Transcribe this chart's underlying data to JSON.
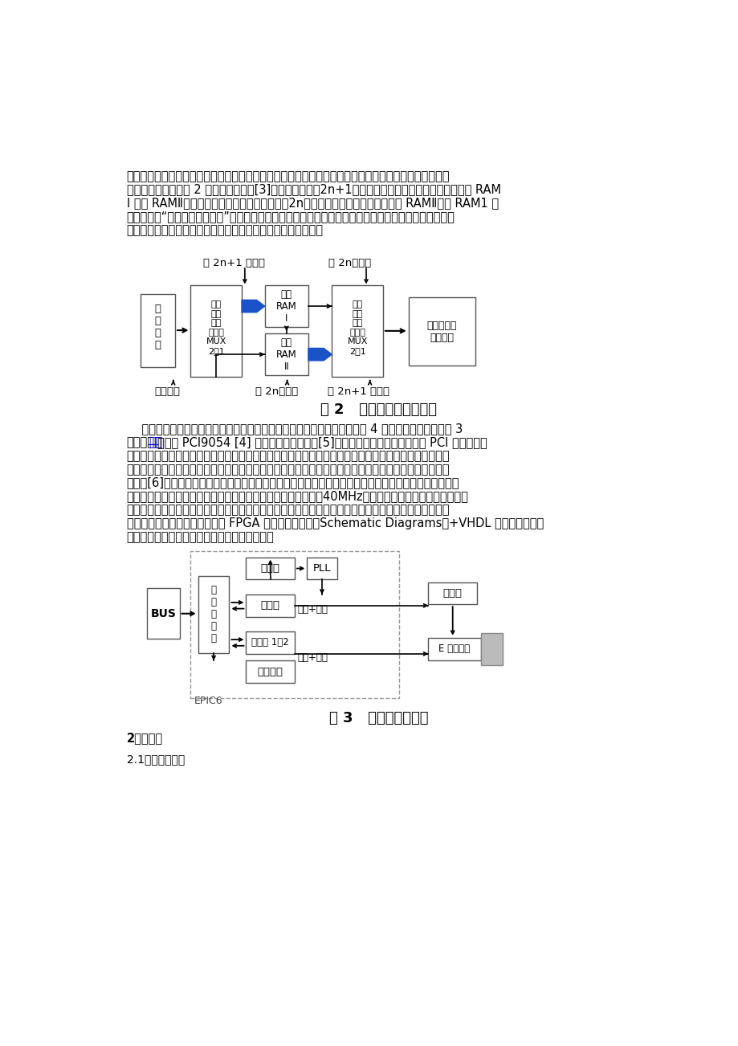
{
  "bg_color": "#ffffff",
  "text_color": "#000000",
  "paragraph1": "分析仪采样实际工作信号皆无毛刺。在高速变化的分频倍数数据流控制时，为了保证整个系统的分频输出",
  "paragraph1b": "的实时性，采用如图 2 所示的乒乓操作[3]技巧。在奇数（2n+1）个缓冲周期时，输入的数据流缓冲到 RAM",
  "paragraph1c": "I 和从 RAMⅡ取出数据到运算模块。在第偶数（2n）个缓冲周期，将数据流缓冲到 RAMⅡ，将 RAM1 里",
  "paragraph1d": "的数据通过“数据输出选择单元”的选择，送到最后的分频和计数的运算模块进行计算输出。如此循环，周",
  "paragraph1e": "而复始。这种流水线式算法，可以完成数据的无缝缓冲与处理。",
  "fig2_caption": "图 2   高速数据流控制方法",
  "fig3_caption": "图 3   运动控制卡原理",
  "paragraph2a": "    本文所述的运动控制卡共涉及总线控制器、分频器、定时器、反馈控制等 4 个模块，其原理图如图 3",
  "paragraph2b": "所示。总线控制器完成 PCI9054 [4] 局部总线的仲裁逻辑[5]、地址译码和数据流控制，使 PCI 数据总线上",
  "paragraph2c": "的数据正确地被译码到各分控制模块进行运算输出。定时器实现硬件定时，计算机通过驱动程序给运动控",
  "paragraph2d": "制卡输入一时间值和一个表示计时开始的控制字，运动控制卡开始计时，在计时完成时，通过产生硬件中",
  "paragraph2e": "断方式[6]，进入中断服务程序，从而实现电机的转角准确定位。我们还可以把一些用户代码作为中断处理",
  "paragraph2f": "子程序，来实现定时切换或运算的功能。分频器实现工作频率（40MHz）的分频工作，得到控制电机转速",
  "paragraph2g": "的脑冲频率。反馈控制模块实现电机的输出补偿和状态监控功能，可通过读取误差从而实现修正，以此来",
  "paragraph2h": "提高系统控制精度。这些模块在 FPGA 内部采用原理图（Schematic Diagrams）+VHDL 语言结合的方式",
  "paragraph2i": "进行描述，使逻辑层次更加明确和可读性更强。",
  "section1": "2算法设计",
  "section2": "2.1实时分频算法",
  "link_text": "控制",
  "link_color": "#0000FF",
  "link_pre": "所示。总线",
  "link_post": "器完成 PCI9054 [4] 局部总线的仲裁逻辑[5]、地址译码和数据流控制，使 PCI 数据总线上"
}
